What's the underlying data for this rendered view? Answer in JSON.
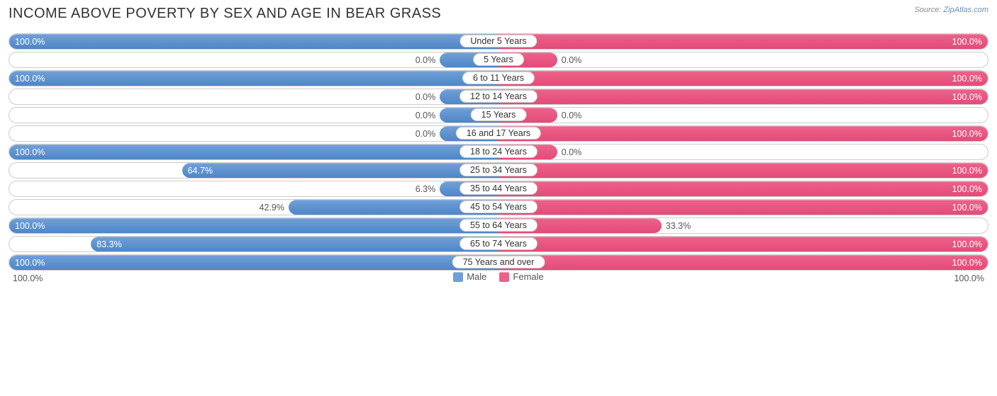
{
  "title": "INCOME ABOVE POVERTY BY SEX AND AGE IN BEAR GRASS",
  "source_prefix": "Source: ",
  "source_link": "ZipAtlas.com",
  "colors": {
    "male_fill": "#6f9fd8",
    "male_border": "#4f86c6",
    "female_fill": "#ec6189",
    "female_border": "#e44b78",
    "track_border": "#cccccc",
    "background": "#ffffff",
    "text": "#555555"
  },
  "min_bar_pct": 12,
  "inside_threshold": 55,
  "axis": {
    "left": "100.0%",
    "right": "100.0%"
  },
  "legend": {
    "male": "Male",
    "female": "Female"
  },
  "rows": [
    {
      "category": "Under 5 Years",
      "male": 100.0,
      "female": 100.0
    },
    {
      "category": "5 Years",
      "male": 0.0,
      "female": 0.0
    },
    {
      "category": "6 to 11 Years",
      "male": 100.0,
      "female": 100.0
    },
    {
      "category": "12 to 14 Years",
      "male": 0.0,
      "female": 100.0
    },
    {
      "category": "15 Years",
      "male": 0.0,
      "female": 0.0
    },
    {
      "category": "16 and 17 Years",
      "male": 0.0,
      "female": 100.0
    },
    {
      "category": "18 to 24 Years",
      "male": 100.0,
      "female": 0.0
    },
    {
      "category": "25 to 34 Years",
      "male": 64.7,
      "female": 100.0
    },
    {
      "category": "35 to 44 Years",
      "male": 6.3,
      "female": 100.0
    },
    {
      "category": "45 to 54 Years",
      "male": 42.9,
      "female": 100.0
    },
    {
      "category": "55 to 64 Years",
      "male": 100.0,
      "female": 33.3
    },
    {
      "category": "65 to 74 Years",
      "male": 83.3,
      "female": 100.0
    },
    {
      "category": "75 Years and over",
      "male": 100.0,
      "female": 100.0
    }
  ]
}
